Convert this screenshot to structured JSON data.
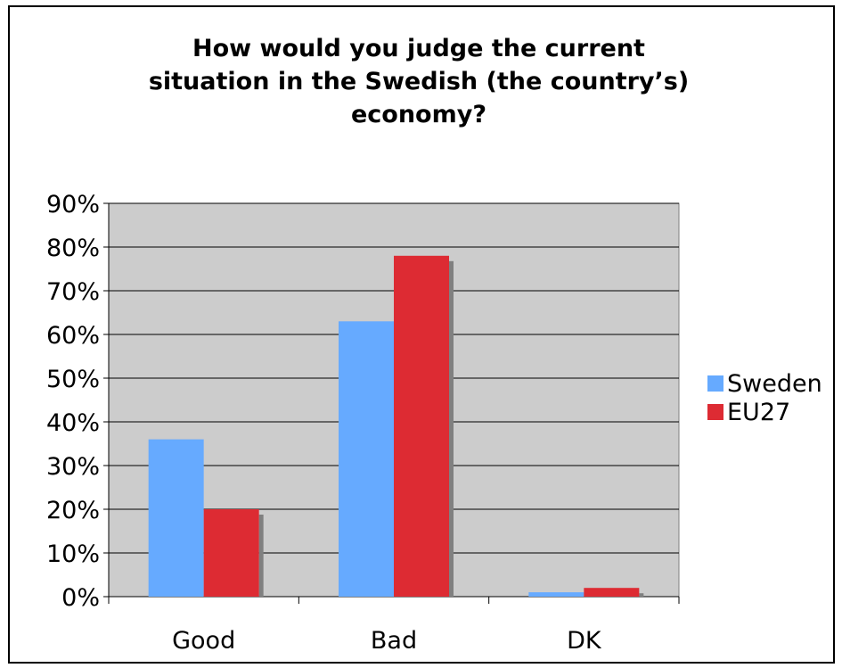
{
  "chart_data": {
    "type": "bar",
    "title": "How would you judge the current\nsituation in the Swedish (the country’s)\neconomy?",
    "categories": [
      "Good",
      "Bad",
      "DK"
    ],
    "series": [
      {
        "name": "Sweden",
        "values": [
          36,
          63,
          1
        ],
        "color": "#66aaff"
      },
      {
        "name": "EU27",
        "values": [
          20,
          78,
          2
        ],
        "color": "#dd2b33"
      }
    ],
    "ylim": [
      0,
      90
    ],
    "yticks": [
      "0%",
      "10%",
      "20%",
      "30%",
      "40%",
      "50%",
      "60%",
      "70%",
      "80%",
      "90%"
    ],
    "grid": true,
    "legend": "right",
    "plot_background": "#cccccc",
    "shadow_color": "#808080"
  }
}
